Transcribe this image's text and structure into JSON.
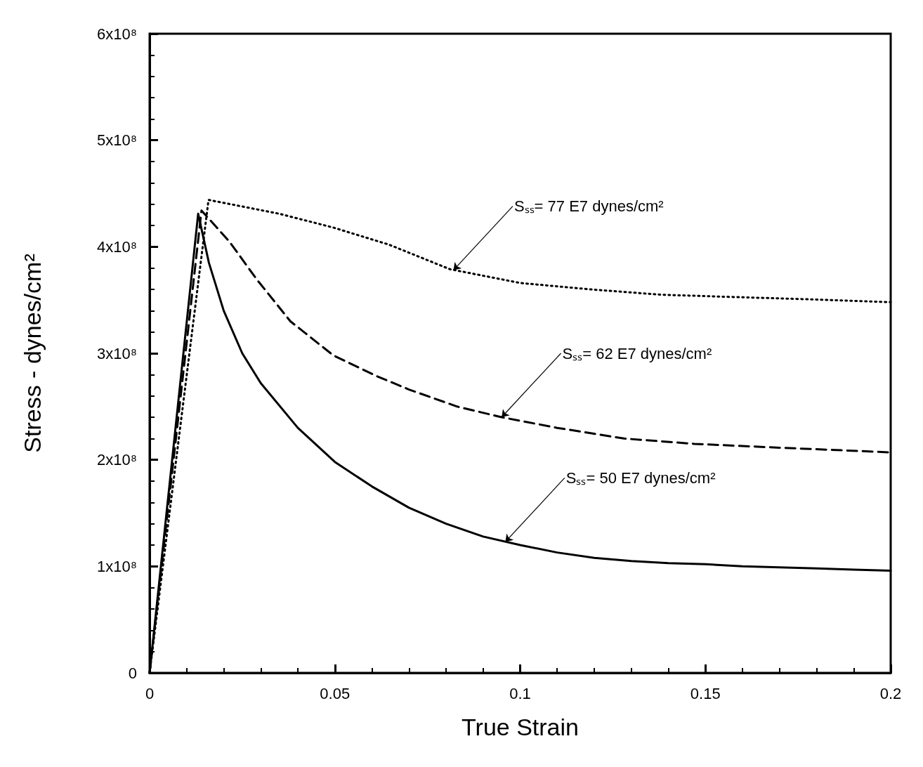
{
  "chart_data": {
    "type": "line",
    "xlabel": "True Strain",
    "ylabel": "Stress - dynes/cm²",
    "xlim": [
      0,
      0.2
    ],
    "xticks": [
      0,
      0.05,
      0.1,
      0.15,
      0.2
    ],
    "ylim": [
      0,
      600000000
    ],
    "yticks": [
      0,
      {
        "value": 100000000,
        "label": "1x10⁸"
      },
      {
        "value": 200000000,
        "label": "2x10⁸"
      },
      {
        "value": 300000000,
        "label": "3x10⁸"
      },
      {
        "value": 400000000,
        "label": "4x10⁸"
      },
      {
        "value": 500000000,
        "label": "5x10⁸"
      },
      {
        "value": 600000000,
        "label": "6x10⁸"
      }
    ],
    "grid": false,
    "marker": "none",
    "series": [
      {
        "color": "#000000",
        "line_style": "solid",
        "x": [
          0,
          0.0131,
          0.016,
          0.02,
          0.025,
          0.03,
          0.04,
          0.05,
          0.06,
          0.07,
          0.08,
          0.09,
          0.1,
          0.11,
          0.12,
          0.13,
          0.14,
          0.15,
          0.16,
          0.17,
          0.18,
          0.19,
          0.2
        ],
        "values": [
          0,
          431000000,
          385000000,
          340000000,
          300000000,
          272000000,
          230000000,
          198000000,
          175000000,
          155000000,
          140000000,
          128000000,
          120000000,
          113000000,
          108000000,
          105000000,
          103000000,
          102000000,
          100000000,
          99000000,
          98000000,
          97000000,
          96000000
        ]
      },
      {
        "color": "#000000",
        "line_style": "dashed",
        "x": [
          0,
          0.014,
          0.0215,
          0.029,
          0.038,
          0.0496,
          0.061,
          0.07,
          0.083,
          0.095,
          0.11,
          0.128,
          0.147,
          0.166,
          0.2
        ],
        "values": [
          0,
          434000000,
          405000000,
          369000000,
          330000000,
          298000000,
          279000000,
          266000000,
          250000000,
          240000000,
          230000000,
          220000000,
          215000000,
          212000000,
          207000000
        ]
      },
      {
        "color": "#000000",
        "line_style": "dotted",
        "x": [
          0,
          0.0159,
          0.035,
          0.0496,
          0.0646,
          0.081,
          0.1,
          0.119,
          0.138,
          0.156,
          0.175,
          0.2
        ],
        "values": [
          0,
          444000000,
          431000000,
          418000000,
          402000000,
          379000000,
          366000000,
          360000000,
          355000000,
          353000000,
          351000000,
          348000000
        ]
      }
    ],
    "annotations": [
      {
        "text": "Sₛₛ= 77 E7 dynes/cm²",
        "x": 0.082,
        "y": 378000000
      },
      {
        "text": "Sₛₛ= 62 E7 dynes/cm²",
        "x": 0.095,
        "y": 240000000
      },
      {
        "text": "Sₛₛ= 50 E7 dynes/cm²",
        "x": 0.096,
        "y": 123000000
      }
    ]
  }
}
